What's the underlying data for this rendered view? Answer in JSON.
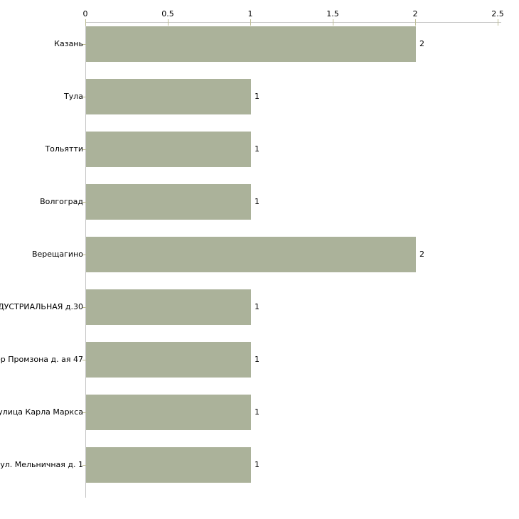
{
  "chart_data": {
    "type": "bar",
    "orientation": "horizontal",
    "title": "",
    "xlabel": "",
    "ylabel": "",
    "categories": [
      "Казань",
      "Тула",
      "Тольятти",
      "Волгоград",
      "Верещагино",
      "ДУСТРИАЛЬНАЯ д.30",
      "ер Промзона д. ая 47",
      "улица Карла Маркса",
      "ул. Мельничная д. 1"
    ],
    "values": [
      2,
      1,
      1,
      1,
      2,
      1,
      1,
      1,
      1
    ],
    "value_labels": [
      "2",
      "1",
      "1",
      "1",
      "2",
      "1",
      "1",
      "1",
      "1"
    ],
    "xlim": [
      0,
      2.5
    ],
    "xticks": [
      0,
      0.5,
      1,
      1.5,
      2,
      2.5
    ],
    "xtick_labels": [
      "0",
      "0.5",
      "1",
      "1.5",
      "2",
      "2.5"
    ],
    "axis_position": "top",
    "grid": false,
    "legend": null,
    "colors": {
      "bar": "#abb29a",
      "axis_line": "#c6c6c6",
      "tick_mark": "#bdbd94",
      "text": "#000000",
      "background": "#ffffff"
    }
  }
}
